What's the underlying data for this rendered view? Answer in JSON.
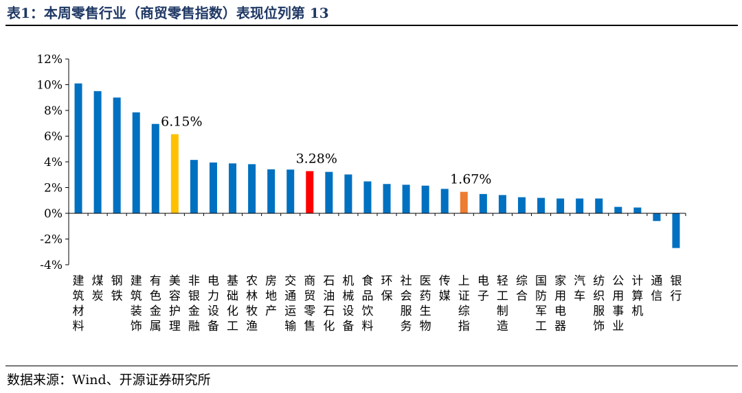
{
  "title": "表1：本周零售行业（商贸零售指数）表现位列第 13",
  "source": "数据来源：Wind、开源证券研究所",
  "chart_data": {
    "type": "bar",
    "ylim": [
      -4,
      12
    ],
    "yticks": [
      -4,
      -2,
      0,
      2,
      4,
      6,
      8,
      10,
      12
    ],
    "ytick_labels": [
      "-4%",
      "-2%",
      "0%",
      "2%",
      "4%",
      "6%",
      "8%",
      "10%",
      "12%"
    ],
    "grid": false,
    "legend": "none",
    "colors": {
      "default": "#0070C0",
      "highlight_orange_yellow": "#FFC000",
      "highlight_red": "#FF0000",
      "highlight_orange": "#ED7D31"
    },
    "categories": [
      "建筑材料",
      "煤炭",
      "钢铁",
      "建筑装饰",
      "有色金属",
      "美容护理",
      "非银金融",
      "电力设备",
      "基础化工",
      "农林牧渔",
      "房地产",
      "交通运输",
      "商贸零售",
      "石油石化",
      "机械设备",
      "食品饮料",
      "环保",
      "社会服务",
      "医药生物",
      "传媒",
      "上证综指",
      "电子",
      "轻工制造",
      "综合",
      "国防军工",
      "家用电器",
      "汽车",
      "纺织服饰",
      "公用事业",
      "计算机",
      "通信",
      "银行"
    ],
    "values": [
      10.1,
      9.5,
      9.0,
      7.85,
      6.95,
      6.15,
      4.15,
      3.95,
      3.88,
      3.82,
      3.42,
      3.4,
      3.28,
      3.22,
      3.02,
      2.48,
      2.28,
      2.22,
      2.15,
      1.9,
      1.67,
      1.5,
      1.42,
      1.25,
      1.2,
      1.15,
      1.15,
      1.15,
      0.5,
      0.45,
      -0.6,
      -2.7
    ],
    "bar_colors": [
      "#0070C0",
      "#0070C0",
      "#0070C0",
      "#0070C0",
      "#0070C0",
      "#FFC000",
      "#0070C0",
      "#0070C0",
      "#0070C0",
      "#0070C0",
      "#0070C0",
      "#0070C0",
      "#FF0000",
      "#0070C0",
      "#0070C0",
      "#0070C0",
      "#0070C0",
      "#0070C0",
      "#0070C0",
      "#0070C0",
      "#ED7D31",
      "#0070C0",
      "#0070C0",
      "#0070C0",
      "#0070C0",
      "#0070C0",
      "#0070C0",
      "#0070C0",
      "#0070C0",
      "#0070C0",
      "#0070C0",
      "#0070C0"
    ],
    "annotations": [
      {
        "category": "美容护理",
        "text": "6.15%"
      },
      {
        "category": "商贸零售",
        "text": "3.28%"
      },
      {
        "category": "上证综指",
        "text": "1.67%"
      }
    ]
  }
}
